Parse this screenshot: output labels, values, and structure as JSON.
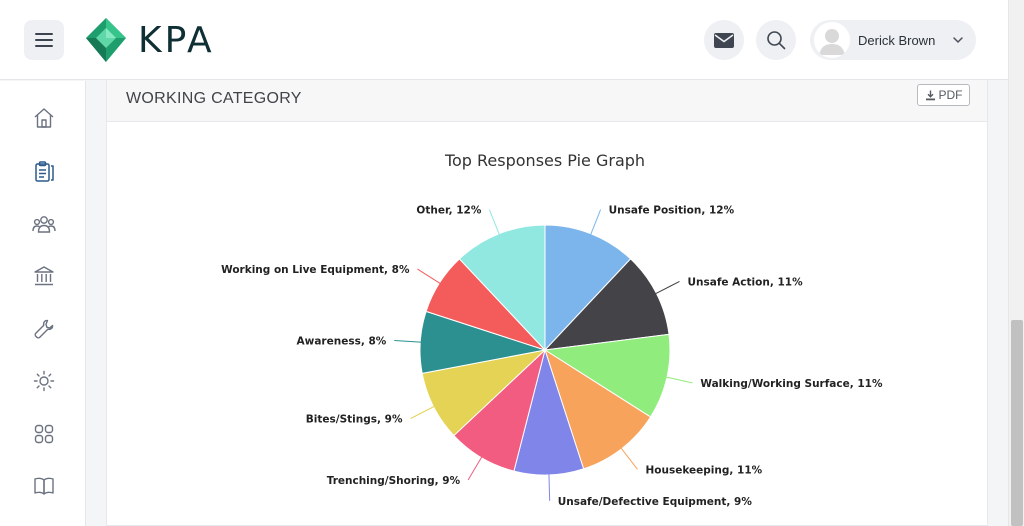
{
  "header": {
    "brand": "KPA",
    "user_name": "Derick Brown"
  },
  "icons": {
    "menu": "hamburger-icon",
    "mail": "envelope-icon",
    "search": "magnifier-icon",
    "chevron": "chevron-down-icon"
  },
  "sidebar": {
    "items": [
      {
        "name": "home",
        "icon": "home-icon"
      },
      {
        "name": "forms",
        "icon": "clipboard-icon",
        "active": true
      },
      {
        "name": "people",
        "icon": "users-icon"
      },
      {
        "name": "institution",
        "icon": "bank-icon"
      },
      {
        "name": "tools",
        "icon": "wrench-icon"
      },
      {
        "name": "brightness",
        "icon": "sun-icon"
      },
      {
        "name": "apps",
        "icon": "grid-icon"
      },
      {
        "name": "library",
        "icon": "book-icon"
      }
    ]
  },
  "card": {
    "title": "WORKING CATEGORY",
    "pdf_label": "PDF"
  },
  "chart_data": {
    "type": "pie",
    "title": "Top Responses Pie Graph",
    "slices": [
      {
        "label": "Unsafe Position, 12%",
        "value": 12,
        "color": "#7cb5ec"
      },
      {
        "label": "Unsafe Action, 11%",
        "value": 11,
        "color": "#434348"
      },
      {
        "label": "Walking/Working Surface, 11%",
        "value": 11,
        "color": "#90ed7d"
      },
      {
        "label": "Housekeeping, 11%",
        "value": 11,
        "color": "#f7a35c"
      },
      {
        "label": "Unsafe/Defective Equipment, 9%",
        "value": 9,
        "color": "#8085e9"
      },
      {
        "label": "Trenching/Shoring, 9%",
        "value": 9,
        "color": "#f15c80"
      },
      {
        "label": "Bites/Stings, 9%",
        "value": 9,
        "color": "#e4d354"
      },
      {
        "label": "Awareness, 8%",
        "value": 8,
        "color": "#2b908f"
      },
      {
        "label": "Working on Live Equipment, 8%",
        "value": 8,
        "color": "#f45b5b"
      },
      {
        "label": "Other, 12%",
        "value": 12,
        "color": "#91e8e1"
      }
    ]
  }
}
